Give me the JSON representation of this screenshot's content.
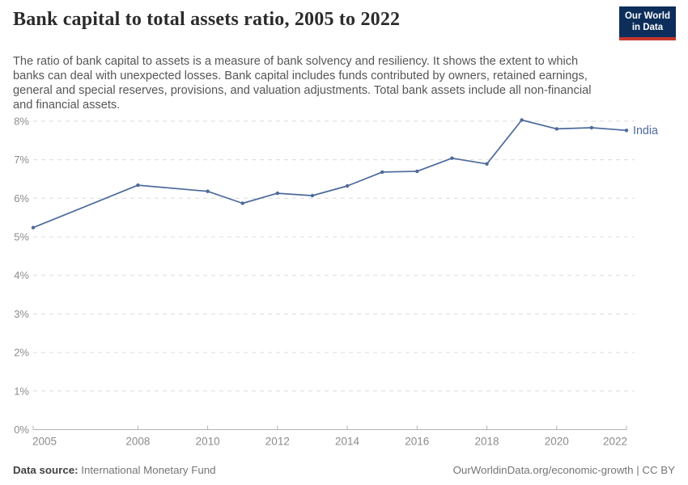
{
  "header": {
    "title": "Bank capital to total assets ratio, 2005 to 2022",
    "subtitle": "The ratio of bank capital to assets is a measure of bank solvency and resiliency. It shows the extent to which banks can deal with unexpected losses. Bank capital includes funds contributed by owners, retained earnings, general and special reserves, provisions, and valuation adjustments. Total bank assets include all non-financial and financial assets.",
    "logo": {
      "line1": "Our World",
      "line2": "in Data"
    }
  },
  "chart_data": {
    "type": "line",
    "title": "Bank capital to total assets ratio, 2005 to 2022",
    "xlabel": "",
    "ylabel": "",
    "xlim": [
      2005,
      2022
    ],
    "ylim": [
      0,
      8
    ],
    "xticks": [
      2005,
      2008,
      2010,
      2012,
      2014,
      2016,
      2018,
      2020,
      2022
    ],
    "yticks": [
      0,
      1,
      2,
      3,
      4,
      5,
      6,
      7,
      8
    ],
    "ytick_suffix": "%",
    "grid": "horizontal-dashed",
    "legend_position": "end-of-line",
    "series": [
      {
        "name": "India",
        "color": "#4c6a9c",
        "points": [
          [
            2005,
            5.24
          ],
          [
            2008,
            6.34
          ],
          [
            2010,
            6.18
          ],
          [
            2011,
            5.87
          ],
          [
            2012,
            6.13
          ],
          [
            2013,
            6.07
          ],
          [
            2014,
            6.32
          ],
          [
            2015,
            6.68
          ],
          [
            2016,
            6.7
          ],
          [
            2017,
            7.04
          ],
          [
            2018,
            6.89
          ],
          [
            2019,
            8.03
          ],
          [
            2020,
            7.8
          ],
          [
            2021,
            7.83
          ],
          [
            2022,
            7.76
          ]
        ],
        "note": "years 2006, 2007 and 2009 have no data; line interpolates"
      }
    ]
  },
  "footer": {
    "source_label": "Data source:",
    "source_value": "International Monetary Fund",
    "attribution": "OurWorldinData.org/economic-growth | CC BY"
  },
  "colors": {
    "line": "#4c6a9c",
    "grid": "#dcdcdc",
    "axis": "#b3b3b3",
    "tick_text": "#8c8c8c",
    "logo_bg": "#0d2e5a",
    "logo_accent": "#c5372c"
  }
}
